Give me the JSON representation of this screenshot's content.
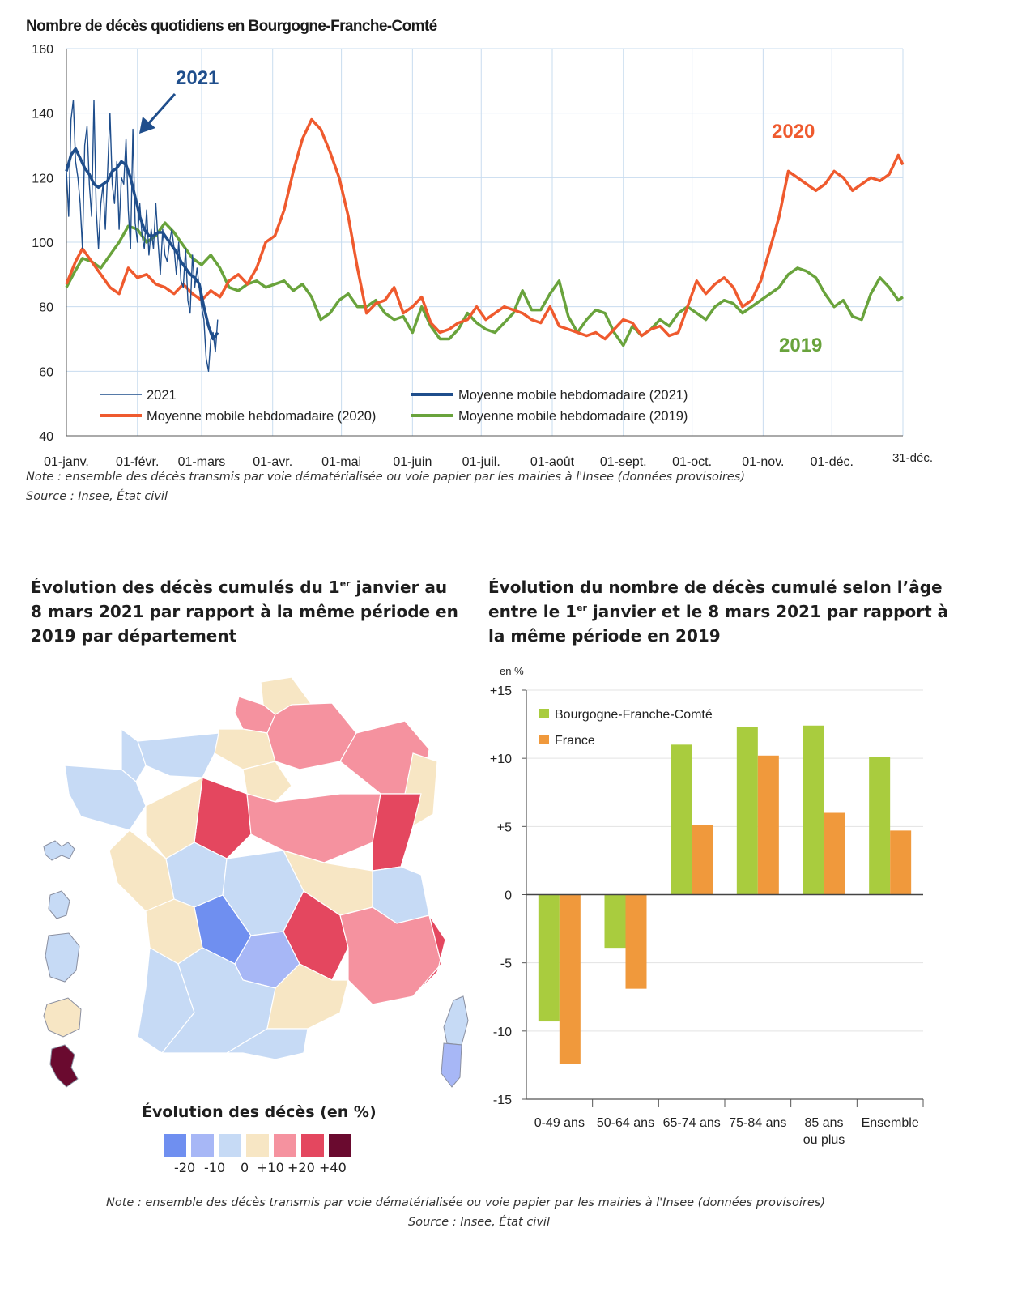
{
  "top_chart": {
    "title": "Nombre de décès quotidiens en Bourgogne-Franche-Comté",
    "note": "Note : ensemble des décès transmis par voie dématérialisée ou voie papier par les mairies à l'Insee (données provisoires)",
    "source": "Source : Insee, État civil",
    "annotations": [
      "2021",
      "2020",
      "2019"
    ],
    "colors": {
      "d2021": "#1f4e8c",
      "m2020": "#ef5a2e",
      "m2019": "#69a33c",
      "grid": "#c8dcef"
    }
  },
  "map_section": {
    "title_pre": "Évolution des décès cumulés du 1",
    "title_sup": "er",
    "title_post": " janvier au 8 mars 2021 par rapport à la même période en 2019 par département",
    "legend_title": "Évolution des décès (en %)",
    "legend_labels": [
      "-20",
      "-10",
      "0",
      "+10",
      "+20",
      "+40"
    ],
    "legend_colors": [
      "#6f8ff0",
      "#a7b7f6",
      "#c6daf5",
      "#f7e6c4",
      "#f5929f",
      "#e4475f",
      "#6a0a2f"
    ]
  },
  "bar_section": {
    "title_pre": "Évolution du nombre de décès cumulé selon l’âge entre le 1",
    "title_sup": "er",
    "title_post": " janvier et le 8 mars 2021 par rapport à la même période en 2019"
  },
  "bottom_note": "Note : ensemble des décès transmis par voie dématérialisée ou voie papier par les mairies à l'Insee (données provisoires)",
  "bottom_source": "Source : Insee, État civil",
  "chart_data": [
    {
      "type": "line",
      "title": "Nombre de décès quotidiens en Bourgogne-Franche-Comté",
      "ylim": [
        40,
        160
      ],
      "yticks": [
        40,
        60,
        80,
        100,
        120,
        140,
        160
      ],
      "xlim_days": [
        1,
        366
      ],
      "xtick_labels": [
        "01-janv.",
        "01-févr.",
        "01-mars",
        "01-avr.",
        "01-mai",
        "01-juin",
        "01-juil.",
        "01-août",
        "01-sept.",
        "01-oct.",
        "01-nov.",
        "01-déc.",
        "31-déc."
      ],
      "xtick_days": [
        1,
        32,
        60,
        91,
        121,
        152,
        182,
        213,
        244,
        274,
        305,
        335,
        366
      ],
      "legend": [
        "2021",
        "Moyenne mobile hebdomadaire (2021)",
        "Moyenne mobile hebdomadaire (2020)",
        "Moyenne mobile hebdomadaire (2019)"
      ],
      "series": [
        {
          "name": "2021",
          "x": [
            1,
            2,
            3,
            4,
            5,
            6,
            7,
            8,
            9,
            10,
            11,
            12,
            13,
            14,
            15,
            16,
            17,
            18,
            19,
            20,
            21,
            22,
            23,
            24,
            25,
            26,
            27,
            28,
            29,
            30,
            31,
            32,
            33,
            34,
            35,
            36,
            37,
            38,
            39,
            40,
            41,
            42,
            43,
            44,
            45,
            46,
            47,
            48,
            49,
            50,
            51,
            52,
            53,
            54,
            55,
            56,
            57,
            58,
            59,
            60,
            61,
            62,
            63,
            64,
            65,
            66,
            67
          ],
          "y": [
            122,
            108,
            138,
            144,
            125,
            120,
            112,
            98,
            130,
            136,
            118,
            108,
            144,
            110,
            98,
            112,
            118,
            104,
            122,
            140,
            118,
            112,
            125,
            104,
            120,
            118,
            132,
            110,
            98,
            135,
            106,
            100,
            112,
            102,
            98,
            110,
            96,
            104,
            98,
            112,
            100,
            90,
            104,
            96,
            94,
            100,
            104,
            98,
            90,
            100,
            88,
            86,
            98,
            82,
            78,
            96,
            86,
            92,
            86,
            80,
            76,
            64,
            60,
            70,
            72,
            66,
            76
          ]
        },
        {
          "name": "Moyenne mobile hebdomadaire (2021)",
          "x": [
            1,
            3,
            5,
            7,
            9,
            11,
            13,
            15,
            17,
            19,
            21,
            23,
            25,
            27,
            29,
            31,
            33,
            35,
            37,
            39,
            41,
            43,
            45,
            47,
            49,
            51,
            53,
            55,
            57,
            59,
            61,
            63,
            65,
            67
          ],
          "y": [
            122,
            127,
            129,
            126,
            123,
            121,
            118,
            117,
            118,
            119,
            122,
            123,
            125,
            124,
            120,
            114,
            108,
            104,
            102,
            102,
            103,
            103,
            101,
            99,
            97,
            94,
            92,
            90,
            89,
            87,
            80,
            74,
            70,
            72
          ]
        },
        {
          "name": "Moyenne mobile hebdomadaire (2020)",
          "x": [
            1,
            5,
            8,
            12,
            16,
            20,
            24,
            28,
            32,
            36,
            40,
            44,
            48,
            52,
            56,
            60,
            64,
            68,
            72,
            76,
            80,
            84,
            88,
            92,
            96,
            100,
            104,
            108,
            112,
            116,
            120,
            124,
            128,
            132,
            136,
            140,
            144,
            148,
            152,
            156,
            160,
            164,
            168,
            172,
            176,
            180,
            184,
            188,
            192,
            196,
            200,
            204,
            208,
            212,
            216,
            220,
            224,
            228,
            232,
            236,
            240,
            244,
            248,
            252,
            256,
            260,
            264,
            268,
            272,
            276,
            280,
            284,
            288,
            292,
            296,
            300,
            304,
            308,
            312,
            316,
            320,
            324,
            328,
            332,
            336,
            340,
            344,
            348,
            352,
            356,
            360,
            364,
            366
          ],
          "y": [
            87,
            94,
            98,
            94,
            90,
            86,
            84,
            92,
            89,
            90,
            87,
            86,
            84,
            87,
            84,
            82,
            85,
            83,
            88,
            90,
            87,
            92,
            100,
            102,
            110,
            122,
            132,
            138,
            135,
            128,
            120,
            108,
            92,
            78,
            81,
            82,
            86,
            78,
            80,
            83,
            75,
            72,
            73,
            75,
            76,
            80,
            76,
            78,
            80,
            79,
            78,
            76,
            75,
            80,
            74,
            73,
            72,
            71,
            72,
            70,
            73,
            76,
            75,
            71,
            73,
            74,
            71,
            72,
            80,
            88,
            84,
            87,
            89,
            86,
            80,
            82,
            88,
            98,
            108,
            122,
            120,
            118,
            116,
            118,
            122,
            120,
            116,
            118,
            120,
            119,
            121,
            127,
            124
          ]
        },
        {
          "name": "Moyenne mobile hebdomadaire (2019)",
          "x": [
            1,
            4,
            8,
            12,
            16,
            20,
            24,
            28,
            32,
            36,
            40,
            44,
            48,
            52,
            56,
            60,
            64,
            68,
            72,
            76,
            80,
            84,
            88,
            92,
            96,
            100,
            104,
            108,
            112,
            116,
            120,
            124,
            128,
            132,
            136,
            140,
            144,
            148,
            152,
            156,
            160,
            164,
            168,
            172,
            176,
            180,
            184,
            188,
            192,
            196,
            200,
            204,
            208,
            212,
            216,
            220,
            224,
            228,
            232,
            236,
            240,
            244,
            248,
            252,
            256,
            260,
            264,
            268,
            272,
            276,
            280,
            284,
            288,
            292,
            296,
            300,
            304,
            308,
            312,
            316,
            320,
            324,
            328,
            332,
            336,
            340,
            344,
            348,
            352,
            356,
            360,
            364,
            366
          ],
          "y": [
            86,
            90,
            95,
            94,
            92,
            96,
            100,
            105,
            104,
            100,
            102,
            106,
            103,
            99,
            95,
            93,
            96,
            92,
            86,
            85,
            87,
            88,
            86,
            87,
            88,
            85,
            87,
            83,
            76,
            78,
            82,
            84,
            80,
            80,
            82,
            78,
            76,
            77,
            72,
            80,
            74,
            70,
            70,
            73,
            78,
            75,
            73,
            72,
            75,
            78,
            85,
            79,
            79,
            84,
            88,
            77,
            72,
            76,
            79,
            78,
            72,
            68,
            74,
            71,
            73,
            76,
            74,
            78,
            80,
            78,
            76,
            80,
            82,
            81,
            78,
            80,
            82,
            84,
            86,
            90,
            92,
            91,
            89,
            84,
            80,
            82,
            77,
            76,
            84,
            89,
            86,
            82,
            83
          ]
        }
      ],
      "annotations": [
        "2021",
        "2020",
        "2019"
      ]
    },
    {
      "type": "bar",
      "ylabel": "en %",
      "ylim": [
        -15,
        15
      ],
      "yticks": [
        -15,
        -10,
        -5,
        0,
        5,
        10,
        15
      ],
      "ytick_labels": [
        "-15",
        "-10",
        "-5",
        "0",
        "+5",
        "+10",
        "+15"
      ],
      "categories": [
        "0-49 ans",
        "50-64 ans",
        "65-74 ans",
        "75-84 ans",
        "85 ans ou plus",
        "Ensemble"
      ],
      "series": [
        {
          "name": "Bourgogne-Franche-Comté",
          "values": [
            -9.3,
            -3.9,
            11.0,
            12.3,
            12.4,
            10.1
          ]
        },
        {
          "name": "France",
          "values": [
            -12.4,
            -6.9,
            5.1,
            10.2,
            6.0,
            4.7
          ]
        }
      ],
      "colors": [
        "#a9cc3e",
        "#f0993c"
      ],
      "legend_position": "top-left"
    }
  ]
}
